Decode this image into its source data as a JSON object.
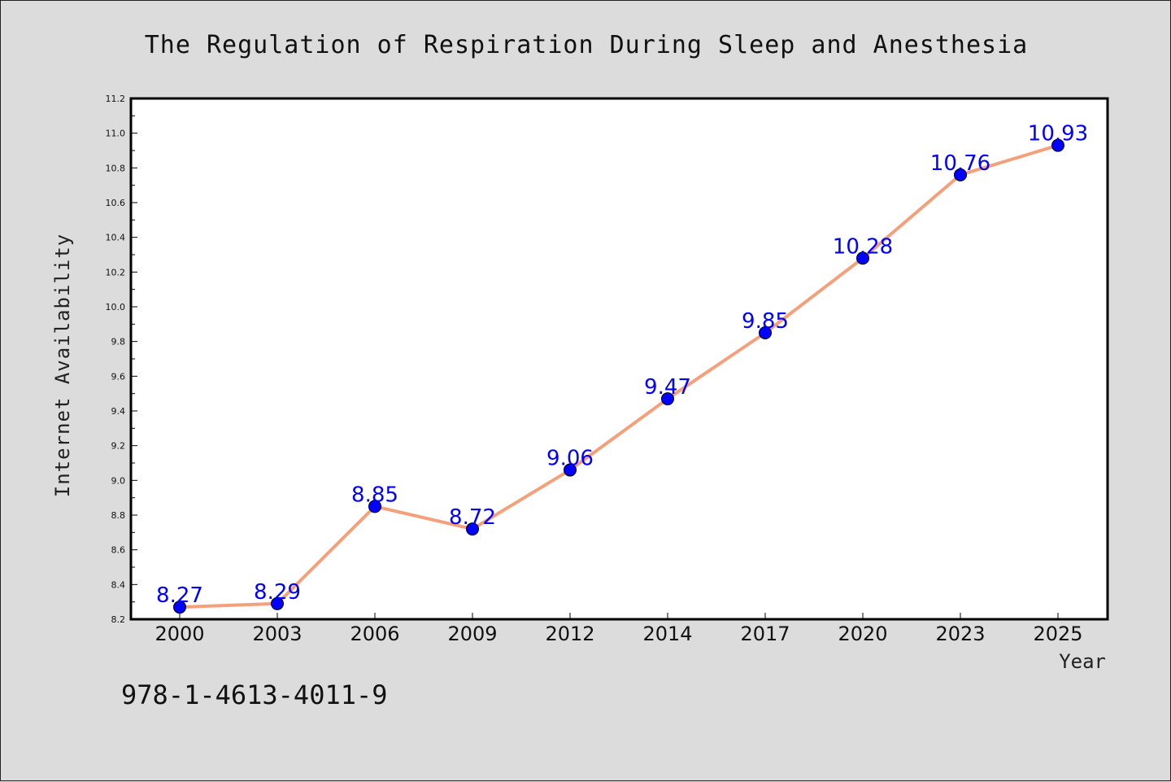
{
  "chart_data": {
    "type": "line",
    "title": "The Regulation of Respiration During Sleep and Anesthesia",
    "xlabel": "Year",
    "ylabel": "Internet Availability",
    "categories": [
      "2000",
      "2003",
      "2006",
      "2009",
      "2012",
      "2014",
      "2017",
      "2020",
      "2023",
      "2025"
    ],
    "series": [
      {
        "values": [
          8.27,
          8.29,
          8.85,
          8.72,
          9.06,
          9.47,
          9.85,
          10.28,
          10.76,
          10.93
        ],
        "labels": [
          "8.27",
          "8.29",
          "8.85",
          "8.72",
          "9.06",
          "9.47",
          "9.85",
          "10.28",
          "10.76",
          "10.93"
        ],
        "line_color": "#f4a07a",
        "marker_color": "#0000ff"
      }
    ],
    "ylim": [
      8.2,
      11.2
    ],
    "yticks": [
      "8.2",
      "8.4",
      "8.6",
      "8.8",
      "9.0",
      "9.2",
      "9.4",
      "9.6",
      "9.8",
      "10.0",
      "10.2",
      "10.4",
      "10.6",
      "10.8",
      "11.0",
      "11.2"
    ],
    "grid": false,
    "legend": "none"
  },
  "footer": {
    "isbn": "978-1-4613-4011-9"
  },
  "colors": {
    "background": "#dcdcdc",
    "plot_background": "#ffffff",
    "axis": "#000000",
    "label_color": "#0000ff"
  }
}
